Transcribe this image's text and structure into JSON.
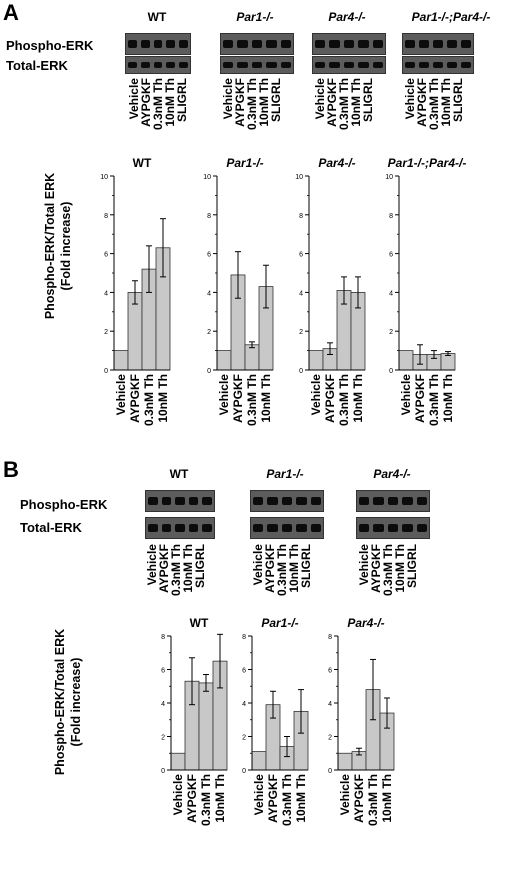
{
  "panel_a": {
    "letter": "A",
    "row_labels": {
      "phospho": "Phospho-ERK",
      "total": "Total-ERK"
    },
    "genotypes": [
      "WT",
      "Par1-/-",
      "Par4-/-",
      "Par1-/-;Par4-/-"
    ],
    "blot_lanes": [
      "Vehicle",
      "AYPGKF",
      "0.3nM Th",
      "10nM Th",
      "SLIGRL"
    ],
    "ylabel_line1": "Phospho-ERK/Total ERK",
    "ylabel_line2": "(Fold increase)"
  },
  "panel_b": {
    "letter": "B",
    "row_labels": {
      "phospho": "Phospho-ERK",
      "total": "Total-ERK"
    },
    "genotypes": [
      "WT",
      "Par1-/-",
      "Par4-/-"
    ],
    "blot_lanes": [
      "Vehicle",
      "AYPGKF",
      "0.3nM Th",
      "10nM Th",
      "SLIGRL"
    ],
    "ylabel_line1": "Phospho-ERK/Total ERK",
    "ylabel_line2": "(Fold increase)"
  },
  "chart_data": [
    {
      "type": "bar",
      "title": "WT",
      "categories": [
        "Vehicle",
        "AYPGKF",
        "0.3nM Th",
        "10nM Th"
      ],
      "values": [
        1.0,
        4.0,
        5.2,
        6.3
      ],
      "errors": [
        0,
        0.6,
        1.2,
        1.5
      ],
      "ylim": [
        0,
        10
      ],
      "yticks": [
        0,
        2,
        4,
        6,
        8,
        10
      ]
    },
    {
      "type": "bar",
      "title": "Par1-/-",
      "categories": [
        "Vehicle",
        "AYPGKF",
        "0.3nM Th",
        "10nM Th"
      ],
      "values": [
        1.0,
        4.9,
        1.3,
        4.3
      ],
      "errors": [
        0,
        1.2,
        0.15,
        1.1
      ],
      "ylim": [
        0,
        10
      ],
      "yticks": [
        0,
        2,
        4,
        6,
        8,
        10
      ]
    },
    {
      "type": "bar",
      "title": "Par4-/-",
      "categories": [
        "Vehicle",
        "AYPGKF",
        "0.3nM Th",
        "10nM Th"
      ],
      "values": [
        1.0,
        1.1,
        4.1,
        4.0
      ],
      "errors": [
        0,
        0.3,
        0.7,
        0.8
      ],
      "ylim": [
        0,
        10
      ],
      "yticks": [
        0,
        2,
        4,
        6,
        8,
        10
      ]
    },
    {
      "type": "bar",
      "title": "Par1-/-;Par4-/-",
      "categories": [
        "Vehicle",
        "AYPGKF",
        "0.3nM Th",
        "10nM Th"
      ],
      "values": [
        1.0,
        0.8,
        0.8,
        0.85
      ],
      "errors": [
        0,
        0.5,
        0.2,
        0.1
      ],
      "ylim": [
        0,
        10
      ],
      "yticks": [
        0,
        2,
        4,
        6,
        8,
        10
      ]
    },
    {
      "type": "bar",
      "title": "WT",
      "categories": [
        "Vehicle",
        "AYPGKF",
        "0.3nM Th",
        "10nM Th"
      ],
      "values": [
        1.0,
        5.3,
        5.2,
        6.5
      ],
      "errors": [
        0,
        1.4,
        0.5,
        1.6
      ],
      "ylim": [
        0,
        8
      ],
      "yticks": [
        0,
        2,
        4,
        6,
        8
      ]
    },
    {
      "type": "bar",
      "title": "Par1-/-",
      "categories": [
        "Vehicle",
        "AYPGKF",
        "0.3nM Th",
        "10nM Th"
      ],
      "values": [
        1.1,
        3.9,
        1.4,
        3.5
      ],
      "errors": [
        0,
        0.8,
        0.6,
        1.3
      ],
      "ylim": [
        0,
        8
      ],
      "yticks": [
        0,
        2,
        4,
        6,
        8
      ]
    },
    {
      "type": "bar",
      "title": "Par4-/-",
      "categories": [
        "Vehicle",
        "AYPGKF",
        "0.3nM Th",
        "10nM Th"
      ],
      "values": [
        1.0,
        1.1,
        4.8,
        3.4
      ],
      "errors": [
        0,
        0.2,
        1.8,
        0.9
      ],
      "ylim": [
        0,
        8
      ],
      "yticks": [
        0,
        2,
        4,
        6,
        8
      ]
    }
  ]
}
